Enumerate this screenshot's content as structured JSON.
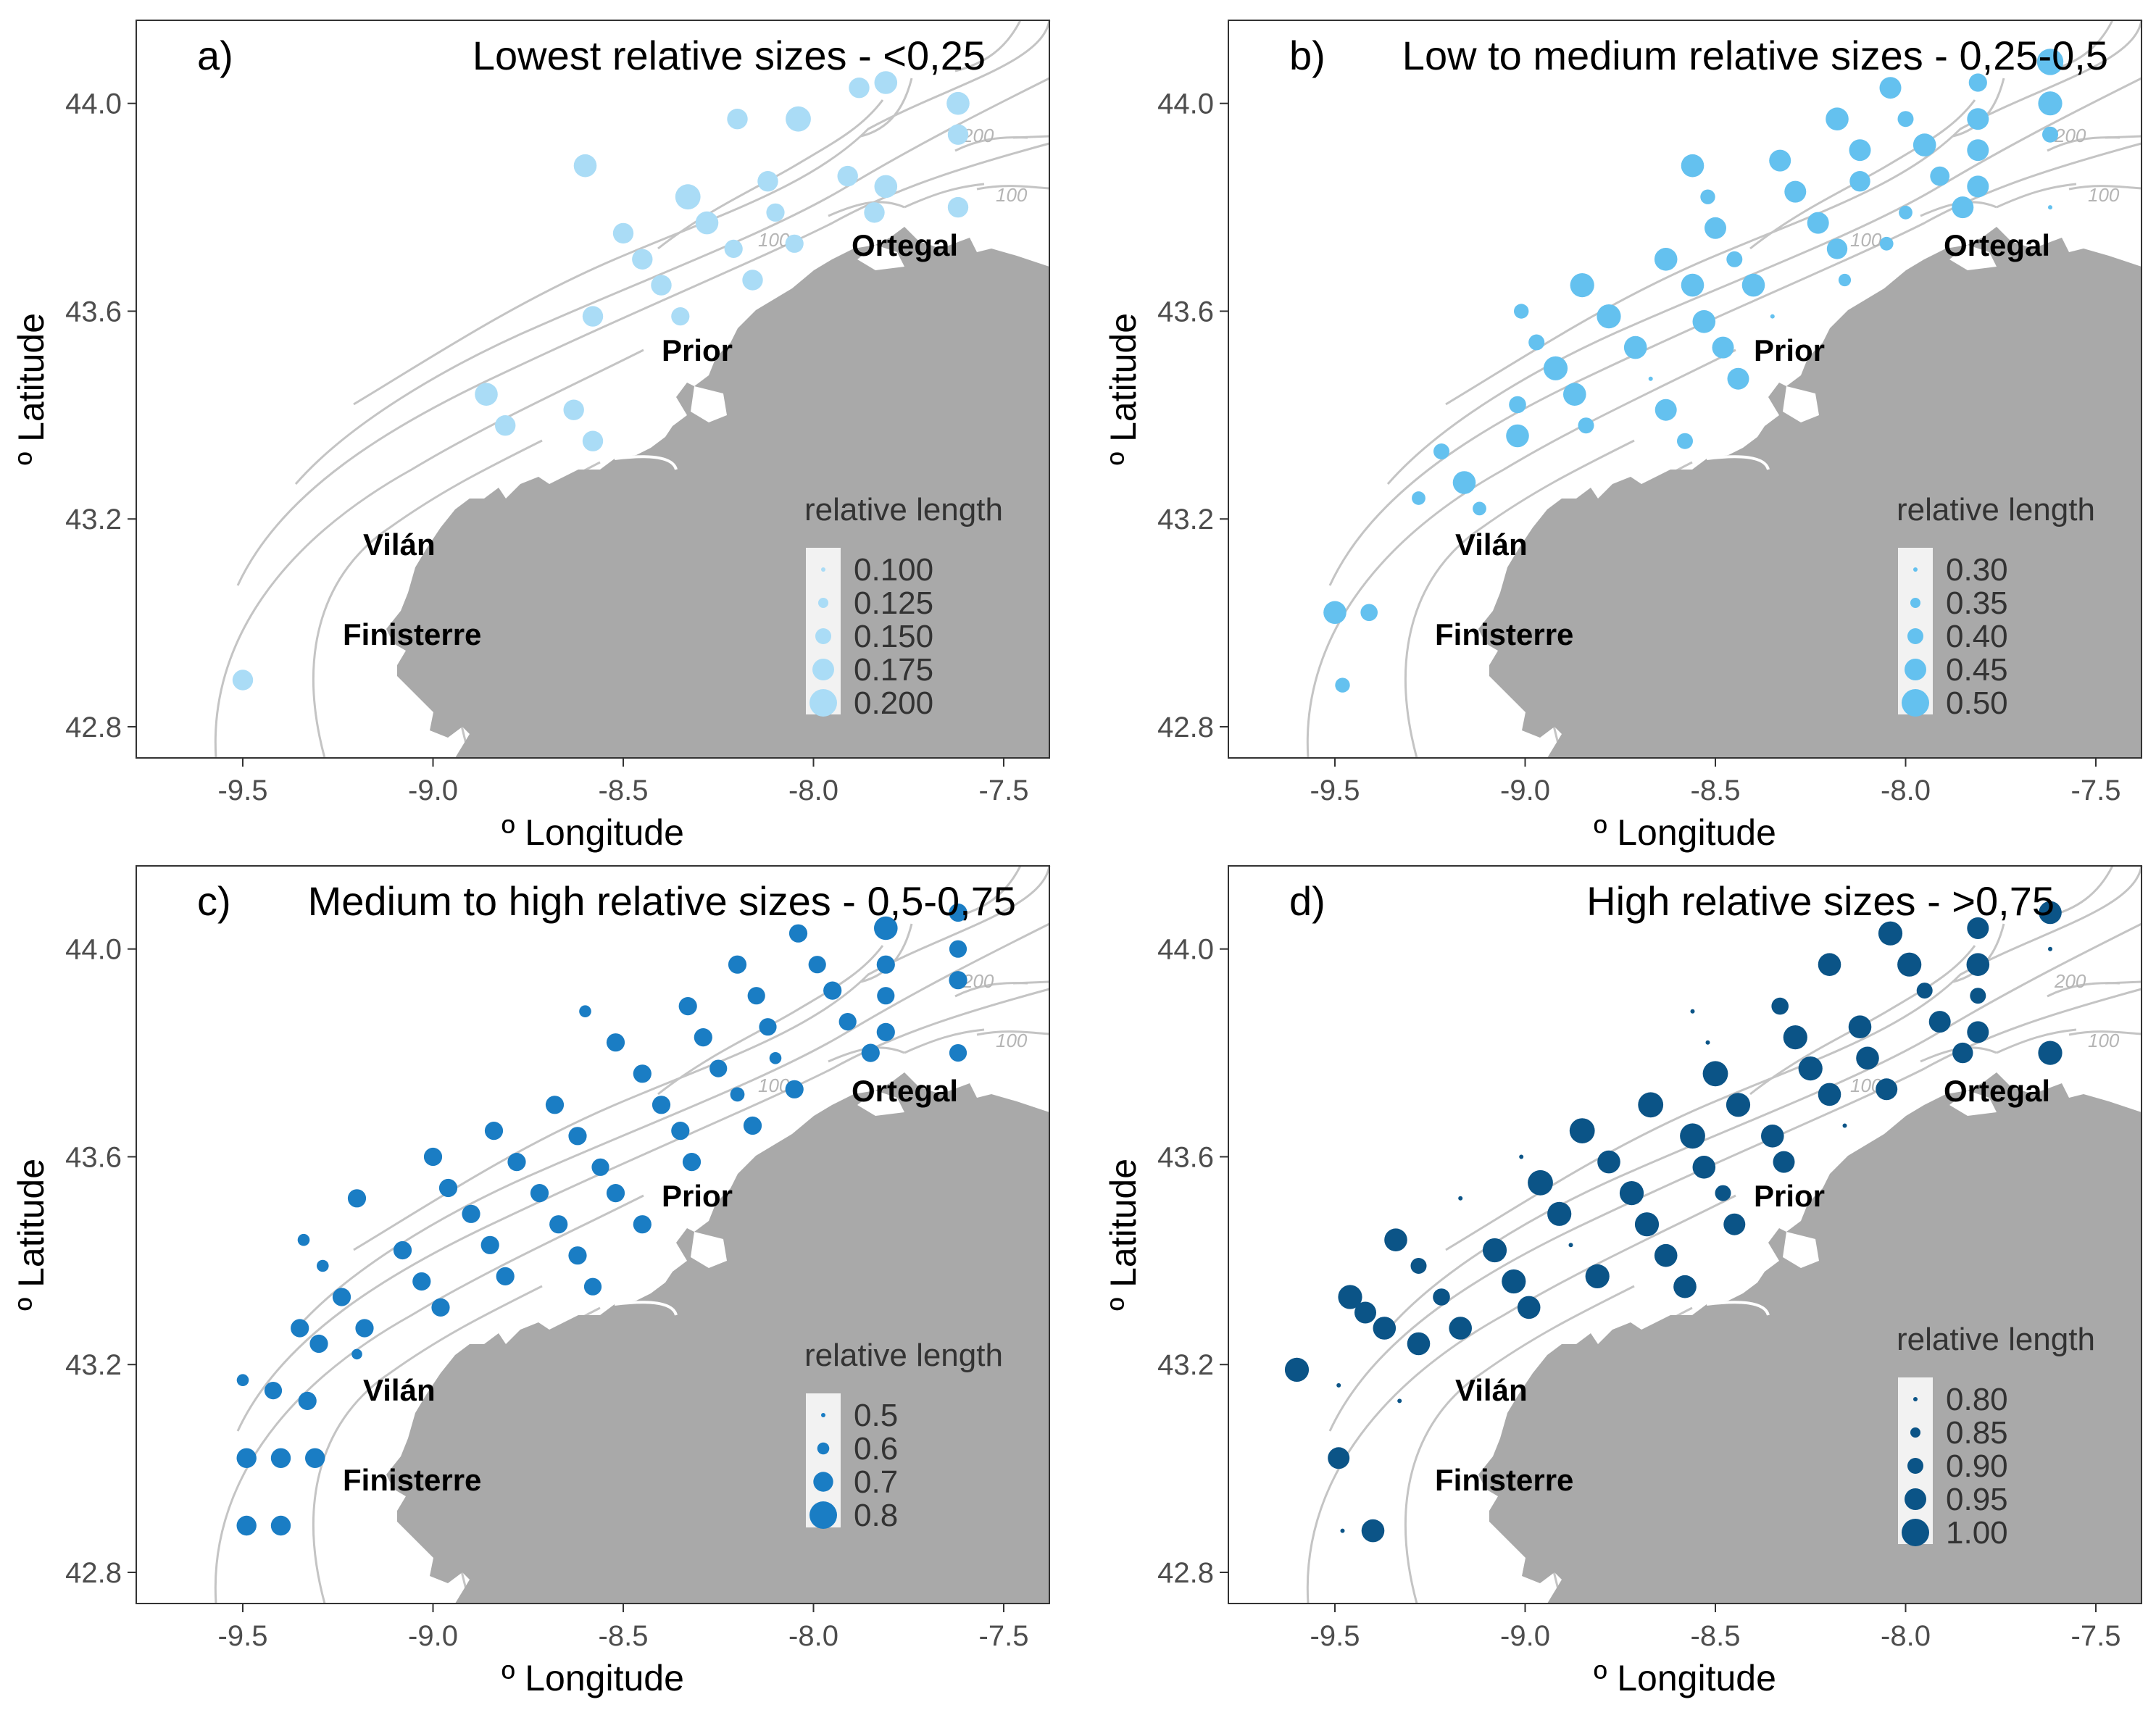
{
  "axes": {
    "xlabel": "º Longitude",
    "ylabel": "º Latitude",
    "xticks": [
      -9.5,
      -9.0,
      -8.5,
      -8.0,
      -7.5
    ],
    "xtick_labels": [
      "-9.5",
      "-9.0",
      "-8.5",
      "-8.0",
      "-7.5"
    ],
    "yticks": [
      42.8,
      43.2,
      43.6,
      44.0
    ],
    "ytick_labels": [
      "42.8",
      "43.2",
      "43.6",
      "44.0"
    ],
    "xlim": [
      -9.78,
      -7.38
    ],
    "ylim": [
      42.74,
      44.16
    ]
  },
  "places": [
    {
      "name": "Ortegal",
      "lon": -7.85,
      "lat": 43.72
    },
    {
      "name": "Prior",
      "lon": -8.31,
      "lat": 43.53
    },
    {
      "name": "Vilán",
      "lon": -9.16,
      "lat": 43.16
    },
    {
      "name": "Finisterre",
      "lon": -9.15,
      "lat": 42.99
    }
  ],
  "isobath_labels": [
    "100",
    "200",
    "100"
  ],
  "colors": {
    "land": "#a9a9a9",
    "isobath": "#c4c4c4",
    "panel_a": "#aadcf6",
    "panel_b": "#64c1ef",
    "panel_c": "#1a7dc4",
    "panel_d": "#0b5487"
  },
  "chart_data": [
    {
      "type": "scatter",
      "panel": "a)",
      "title": "Lowest relative sizes - <0,25",
      "size_variable": "relative length",
      "legend": {
        "title": "relative length",
        "values": [
          0.1,
          0.125,
          0.15,
          0.175,
          0.2
        ],
        "labels": [
          "0.100",
          "0.125",
          "0.150",
          "0.175",
          "0.200"
        ]
      },
      "points": [
        [
          -7.88,
          44.03,
          0.17
        ],
        [
          -7.81,
          44.04,
          0.18
        ],
        [
          -7.62,
          44.0,
          0.18
        ],
        [
          -8.04,
          43.97,
          0.19
        ],
        [
          -7.62,
          43.94,
          0.17
        ],
        [
          -8.2,
          43.97,
          0.17
        ],
        [
          -8.6,
          43.88,
          0.18
        ],
        [
          -8.33,
          43.82,
          0.19
        ],
        [
          -8.12,
          43.85,
          0.17
        ],
        [
          -7.91,
          43.86,
          0.17
        ],
        [
          -7.81,
          43.84,
          0.18
        ],
        [
          -8.28,
          43.77,
          0.18
        ],
        [
          -8.1,
          43.79,
          0.16
        ],
        [
          -7.84,
          43.79,
          0.17
        ],
        [
          -7.62,
          43.8,
          0.17
        ],
        [
          -8.5,
          43.75,
          0.17
        ],
        [
          -8.45,
          43.7,
          0.17
        ],
        [
          -8.21,
          43.72,
          0.16
        ],
        [
          -8.05,
          43.73,
          0.16
        ],
        [
          -8.4,
          43.65,
          0.17
        ],
        [
          -8.16,
          43.66,
          0.17
        ],
        [
          -8.58,
          43.59,
          0.17
        ],
        [
          -8.35,
          43.59,
          0.16
        ],
        [
          -8.86,
          43.44,
          0.18
        ],
        [
          -8.81,
          43.38,
          0.17
        ],
        [
          -8.63,
          43.41,
          0.17
        ],
        [
          -8.58,
          43.35,
          0.17
        ],
        [
          -9.5,
          42.89,
          0.17
        ]
      ]
    },
    {
      "type": "scatter",
      "panel": "b)",
      "title": "Low to medium relative sizes - 0,25-0,5",
      "size_variable": "relative length",
      "legend": {
        "title": "relative length",
        "values": [
          0.3,
          0.35,
          0.4,
          0.45,
          0.5
        ],
        "labels": [
          "0.30",
          "0.35",
          "0.40",
          "0.45",
          "0.50"
        ]
      },
      "points": [
        [
          -7.62,
          44.08,
          0.49
        ],
        [
          -8.04,
          44.03,
          0.45
        ],
        [
          -7.81,
          44.04,
          0.42
        ],
        [
          -7.62,
          44.0,
          0.47
        ],
        [
          -8.18,
          43.97,
          0.46
        ],
        [
          -8.0,
          43.97,
          0.4
        ],
        [
          -7.81,
          43.97,
          0.45
        ],
        [
          -7.62,
          43.94,
          0.4
        ],
        [
          -8.12,
          43.91,
          0.45
        ],
        [
          -7.95,
          43.92,
          0.46
        ],
        [
          -7.81,
          43.91,
          0.45
        ],
        [
          -8.33,
          43.89,
          0.45
        ],
        [
          -8.56,
          43.88,
          0.46
        ],
        [
          -8.12,
          43.85,
          0.44
        ],
        [
          -7.91,
          43.86,
          0.43
        ],
        [
          -7.81,
          43.84,
          0.45
        ],
        [
          -8.52,
          43.82,
          0.39
        ],
        [
          -8.29,
          43.83,
          0.45
        ],
        [
          -8.0,
          43.79,
          0.38
        ],
        [
          -7.85,
          43.8,
          0.45
        ],
        [
          -7.62,
          43.8,
          0.3
        ],
        [
          -8.5,
          43.76,
          0.45
        ],
        [
          -8.23,
          43.77,
          0.45
        ],
        [
          -8.05,
          43.73,
          0.38
        ],
        [
          -8.18,
          43.72,
          0.44
        ],
        [
          -8.63,
          43.7,
          0.46
        ],
        [
          -8.45,
          43.7,
          0.4
        ],
        [
          -8.16,
          43.66,
          0.37
        ],
        [
          -8.85,
          43.65,
          0.47
        ],
        [
          -8.56,
          43.65,
          0.46
        ],
        [
          -8.4,
          43.65,
          0.46
        ],
        [
          -9.01,
          43.6,
          0.39
        ],
        [
          -8.78,
          43.59,
          0.47
        ],
        [
          -8.53,
          43.58,
          0.46
        ],
        [
          -8.35,
          43.59,
          0.3
        ],
        [
          -8.97,
          43.54,
          0.4
        ],
        [
          -8.71,
          43.53,
          0.46
        ],
        [
          -8.48,
          43.53,
          0.45
        ],
        [
          -8.92,
          43.49,
          0.47
        ],
        [
          -8.44,
          43.47,
          0.45
        ],
        [
          -8.67,
          43.47,
          0.3
        ],
        [
          -8.87,
          43.44,
          0.46
        ],
        [
          -9.02,
          43.42,
          0.41
        ],
        [
          -8.63,
          43.41,
          0.45
        ],
        [
          -8.84,
          43.38,
          0.4
        ],
        [
          -9.02,
          43.36,
          0.46
        ],
        [
          -8.58,
          43.35,
          0.4
        ],
        [
          -9.22,
          43.33,
          0.4
        ],
        [
          -9.16,
          43.27,
          0.46
        ],
        [
          -9.28,
          43.24,
          0.38
        ],
        [
          -9.12,
          43.22,
          0.38
        ],
        [
          -9.5,
          43.02,
          0.46
        ],
        [
          -9.41,
          43.02,
          0.41
        ],
        [
          -9.48,
          42.88,
          0.39
        ]
      ]
    },
    {
      "type": "scatter",
      "panel": "c)",
      "title": "Medium to high relative sizes - 0,5-0,75",
      "size_variable": "relative length",
      "legend": {
        "title": "relative length",
        "values": [
          0.5,
          0.6,
          0.7,
          0.8
        ],
        "labels": [
          "0.5",
          "0.6",
          "0.7",
          "0.8"
        ]
      },
      "points": [
        [
          -7.62,
          44.07,
          0.68
        ],
        [
          -7.81,
          44.04,
          0.75
        ],
        [
          -8.04,
          44.03,
          0.68
        ],
        [
          -7.62,
          44.0,
          0.67
        ],
        [
          -7.99,
          43.97,
          0.67
        ],
        [
          -8.2,
          43.97,
          0.68
        ],
        [
          -7.81,
          43.97,
          0.68
        ],
        [
          -7.95,
          43.92,
          0.68
        ],
        [
          -7.81,
          43.91,
          0.67
        ],
        [
          -7.62,
          43.94,
          0.68
        ],
        [
          -8.15,
          43.91,
          0.67
        ],
        [
          -8.33,
          43.89,
          0.68
        ],
        [
          -8.6,
          43.88,
          0.6
        ],
        [
          -8.12,
          43.85,
          0.67
        ],
        [
          -7.91,
          43.86,
          0.67
        ],
        [
          -7.81,
          43.84,
          0.68
        ],
        [
          -8.29,
          43.83,
          0.68
        ],
        [
          -8.52,
          43.82,
          0.68
        ],
        [
          -8.1,
          43.79,
          0.6
        ],
        [
          -7.85,
          43.8,
          0.68
        ],
        [
          -7.62,
          43.8,
          0.67
        ],
        [
          -8.45,
          43.76,
          0.68
        ],
        [
          -8.25,
          43.77,
          0.67
        ],
        [
          -8.2,
          43.72,
          0.63
        ],
        [
          -8.05,
          43.73,
          0.68
        ],
        [
          -8.4,
          43.7,
          0.68
        ],
        [
          -8.68,
          43.7,
          0.68
        ],
        [
          -8.16,
          43.66,
          0.68
        ],
        [
          -8.35,
          43.65,
          0.68
        ],
        [
          -8.84,
          43.65,
          0.68
        ],
        [
          -8.62,
          43.64,
          0.68
        ],
        [
          -9.0,
          43.6,
          0.68
        ],
        [
          -8.78,
          43.59,
          0.68
        ],
        [
          -8.56,
          43.58,
          0.67
        ],
        [
          -8.32,
          43.59,
          0.68
        ],
        [
          -8.96,
          43.54,
          0.68
        ],
        [
          -8.72,
          43.53,
          0.68
        ],
        [
          -8.52,
          43.53,
          0.68
        ],
        [
          -9.2,
          43.52,
          0.68
        ],
        [
          -8.9,
          43.49,
          0.68
        ],
        [
          -8.67,
          43.47,
          0.68
        ],
        [
          -8.45,
          43.47,
          0.68
        ],
        [
          -9.34,
          43.44,
          0.6
        ],
        [
          -8.85,
          43.43,
          0.68
        ],
        [
          -9.08,
          43.42,
          0.68
        ],
        [
          -8.62,
          43.41,
          0.68
        ],
        [
          -9.29,
          43.39,
          0.6
        ],
        [
          -9.03,
          43.36,
          0.68
        ],
        [
          -8.81,
          43.37,
          0.68
        ],
        [
          -8.58,
          43.35,
          0.67
        ],
        [
          -9.24,
          43.33,
          0.68
        ],
        [
          -8.98,
          43.31,
          0.68
        ],
        [
          -9.35,
          43.27,
          0.68
        ],
        [
          -9.18,
          43.27,
          0.68
        ],
        [
          -9.3,
          43.24,
          0.68
        ],
        [
          -9.2,
          43.22,
          0.58
        ],
        [
          -9.5,
          43.17,
          0.6
        ],
        [
          -9.42,
          43.15,
          0.67
        ],
        [
          -9.33,
          43.13,
          0.68
        ],
        [
          -9.49,
          43.02,
          0.7
        ],
        [
          -9.4,
          43.02,
          0.7
        ],
        [
          -9.31,
          43.02,
          0.7
        ],
        [
          -9.49,
          42.89,
          0.7
        ],
        [
          -9.4,
          42.89,
          0.7
        ]
      ]
    },
    {
      "type": "scatter",
      "panel": "d)",
      "title": "High relative sizes - >0,75",
      "size_variable": "relative length",
      "legend": {
        "title": "relative length",
        "values": [
          0.8,
          0.85,
          0.9,
          0.95,
          1.0
        ],
        "labels": [
          "0.80",
          "0.85",
          "0.90",
          "0.95",
          "1.00"
        ]
      },
      "points": [
        [
          -7.62,
          44.07,
          0.96
        ],
        [
          -7.81,
          44.04,
          0.95
        ],
        [
          -8.04,
          44.03,
          0.97
        ],
        [
          -7.62,
          44.0,
          0.78
        ],
        [
          -8.2,
          43.97,
          0.96
        ],
        [
          -7.99,
          43.97,
          0.97
        ],
        [
          -7.81,
          43.97,
          0.96
        ],
        [
          -7.95,
          43.92,
          0.9
        ],
        [
          -7.81,
          43.91,
          0.9
        ],
        [
          -8.33,
          43.89,
          0.91
        ],
        [
          -8.56,
          43.88,
          0.78
        ],
        [
          -8.12,
          43.85,
          0.96
        ],
        [
          -7.91,
          43.86,
          0.95
        ],
        [
          -7.81,
          43.84,
          0.95
        ],
        [
          -8.29,
          43.83,
          0.97
        ],
        [
          -8.52,
          43.82,
          0.78
        ],
        [
          -8.1,
          43.79,
          0.96
        ],
        [
          -7.85,
          43.8,
          0.94
        ],
        [
          -7.62,
          43.8,
          0.97
        ],
        [
          -8.5,
          43.76,
          0.98
        ],
        [
          -8.25,
          43.77,
          0.97
        ],
        [
          -8.05,
          43.73,
          0.95
        ],
        [
          -8.2,
          43.72,
          0.96
        ],
        [
          -8.67,
          43.7,
          0.98
        ],
        [
          -8.44,
          43.7,
          0.97
        ],
        [
          -8.16,
          43.66,
          0.78
        ],
        [
          -8.85,
          43.65,
          0.98
        ],
        [
          -8.56,
          43.64,
          0.98
        ],
        [
          -8.35,
          43.64,
          0.96
        ],
        [
          -9.01,
          43.6,
          0.79
        ],
        [
          -8.78,
          43.59,
          0.96
        ],
        [
          -8.53,
          43.58,
          0.96
        ],
        [
          -8.32,
          43.59,
          0.95
        ],
        [
          -8.96,
          43.55,
          0.98
        ],
        [
          -8.72,
          43.53,
          0.97
        ],
        [
          -8.48,
          43.53,
          0.9
        ],
        [
          -9.17,
          43.52,
          0.79
        ],
        [
          -8.91,
          43.49,
          0.97
        ],
        [
          -8.68,
          43.47,
          0.97
        ],
        [
          -8.45,
          43.47,
          0.95
        ],
        [
          -9.34,
          43.44,
          0.96
        ],
        [
          -8.88,
          43.43,
          0.79
        ],
        [
          -9.08,
          43.42,
          0.97
        ],
        [
          -8.63,
          43.41,
          0.96
        ],
        [
          -9.28,
          43.39,
          0.9
        ],
        [
          -9.03,
          43.36,
          0.97
        ],
        [
          -8.81,
          43.37,
          0.97
        ],
        [
          -8.58,
          43.35,
          0.96
        ],
        [
          -9.46,
          43.33,
          0.97
        ],
        [
          -9.22,
          43.33,
          0.91
        ],
        [
          -8.99,
          43.31,
          0.96
        ],
        [
          -9.42,
          43.3,
          0.95
        ],
        [
          -9.37,
          43.27,
          0.96
        ],
        [
          -9.17,
          43.27,
          0.96
        ],
        [
          -9.28,
          43.24,
          0.96
        ],
        [
          -9.6,
          43.19,
          0.97
        ],
        [
          -9.49,
          43.16,
          0.79
        ],
        [
          -9.33,
          43.13,
          0.79
        ],
        [
          -9.49,
          43.02,
          0.95
        ],
        [
          -9.48,
          42.88,
          0.79
        ],
        [
          -9.4,
          42.88,
          0.96
        ]
      ]
    }
  ]
}
